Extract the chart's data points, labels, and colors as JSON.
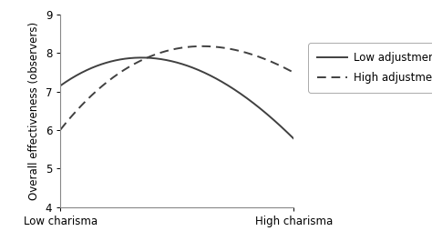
{
  "title": "",
  "ylabel": "Overall effectiveness (observers)",
  "xlabel": "",
  "x_tick_labels": [
    "Low charisma",
    "High charisma"
  ],
  "ylim": [
    4,
    9
  ],
  "xlim": [
    0,
    1
  ],
  "yticks": [
    4,
    5,
    6,
    7,
    8,
    9
  ],
  "low_adj_x": [
    0.0,
    0.08,
    0.18,
    0.28,
    0.35,
    0.42,
    0.55,
    0.65,
    0.75,
    0.85,
    0.92,
    1.0
  ],
  "low_adj_y": [
    7.2,
    7.45,
    7.65,
    7.8,
    7.87,
    7.9,
    7.75,
    7.45,
    7.0,
    6.5,
    6.15,
    5.88
  ],
  "high_adj_x": [
    0.0,
    0.08,
    0.18,
    0.28,
    0.38,
    0.48,
    0.55,
    0.62,
    0.72,
    0.82,
    0.92,
    1.0
  ],
  "high_adj_y": [
    6.05,
    6.55,
    7.1,
    7.6,
    7.92,
    8.1,
    8.18,
    8.2,
    8.1,
    7.92,
    7.72,
    7.52
  ],
  "low_adj_label": "Low adjustment",
  "high_adj_label": "High adjustment",
  "line_color": "#404040",
  "background_color": "#ffffff",
  "fontsize_axis_label": 8.5,
  "fontsize_tick": 8.5,
  "fontsize_legend": 8.5,
  "fig_width": 4.74,
  "fig_height": 2.65,
  "dpi": 100
}
